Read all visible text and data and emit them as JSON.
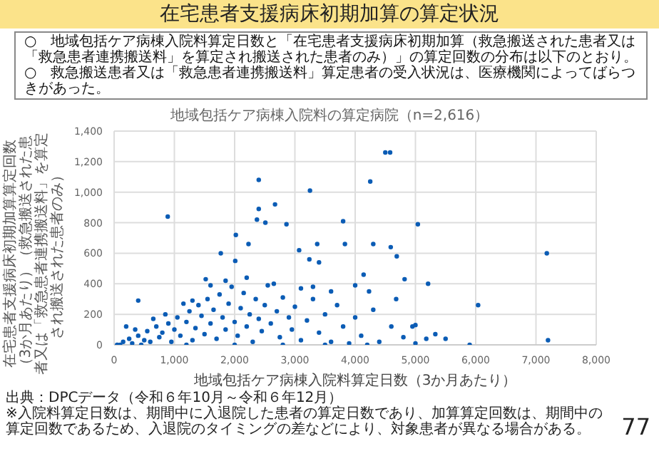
{
  "chart_data": {
    "type": "scatter",
    "title": "在宅患者支援病床初期加算の算定状況",
    "subtitle": "地域包括ケア病棟入院料の算定病院（n=2,616）",
    "xlabel": "地域包括ケア病棟入院料算定日数（3か月あたり）",
    "ylabel": "在宅患者支援病床初期加算算定回数（3か月あたり）（救急搬送された患者又は「救急患者連携搬送料」を算定され搬送された患者のみ）",
    "annotations": [
      "○　地域包括ケア病棟入院料算定日数と「在宅患者支援病床初期加算（救急搬送された患者又は「救急患者連携搬送料」を算定され搬送された患者のみ）」の算定回数の分布は以下のとおり。",
      "○　救急搬送患者又は「救急患者連携搬送料」算定患者の受入状況は、医療機関によってばらつきがあった。",
      "出典：DPCデータ（令和６年10月～令和６年12月）",
      "※入院料算定日数は、期間中に入退院した患者の算定日数であり、加算算定回数は、期間中の算定回数であるため、入退院のタイミングの差などにより、対象患者が異なる場合がある。",
      "77"
    ],
    "series": [
      {
        "color": "#0b5cb5",
        "x": [
          50,
          150,
          250,
          300,
          400,
          500,
          550,
          600,
          700,
          750,
          800,
          900,
          950,
          1000,
          1050,
          1100,
          1200,
          1250,
          1300,
          1350,
          1400,
          1450,
          1500,
          1550,
          1600,
          1650,
          1700,
          1750,
          1800,
          1850,
          1900,
          1950,
          2000,
          2050,
          2100,
          2150,
          2200,
          2250,
          2300,
          2350,
          2400,
          2450,
          2500,
          2550,
          2600,
          2700,
          2750,
          2800,
          2900,
          2950,
          3000,
          3100,
          3200,
          3300,
          3400,
          3500,
          3600,
          3700,
          3800,
          3900,
          4000,
          4100,
          4300,
          4400,
          4600,
          4800,
          5000,
          5500,
          5900,
          200,
          350,
          650,
          850,
          1150,
          1300,
          1600,
          1850,
          2200,
          2650,
          3100,
          3300,
          3600,
          4000,
          100,
          450,
          1200,
          2000,
          2800,
          3500,
          4200,
          4500,
          4580,
          2400,
          4250,
          3250,
          2400,
          2670,
          2370,
          2510,
          2860,
          3800,
          5040,
          7180,
          7200,
          6040,
          5210,
          4820,
          4690,
          4590,
          4300,
          3830,
          3370,
          3070,
          2020,
          2230,
          3240,
          3400,
          4140,
          4230,
          4680,
          5180,
          5330,
          5000,
          4950,
          890,
          1770,
          400,
          2010,
          1520
        ],
        "values": [
          0,
          20,
          40,
          10,
          60,
          30,
          90,
          20,
          120,
          50,
          80,
          140,
          20,
          100,
          180,
          60,
          150,
          220,
          30,
          110,
          260,
          190,
          70,
          300,
          140,
          230,
          40,
          330,
          180,
          100,
          270,
          380,
          150,
          60,
          240,
          340,
          120,
          200,
          20,
          300,
          170,
          90,
          260,
          390,
          140,
          220,
          50,
          310,
          180,
          100,
          250,
          30,
          160,
          300,
          80,
          200,
          20,
          260,
          120,
          10,
          180,
          60,
          230,
          20,
          120,
          50,
          10,
          40,
          0,
          120,
          100,
          170,
          200,
          270,
          290,
          390,
          420,
          440,
          400,
          370,
          380,
          350,
          390,
          0,
          0,
          0,
          0,
          0,
          0,
          0,
          1260,
          1260,
          1080,
          1070,
          1010,
          890,
          920,
          820,
          800,
          790,
          810,
          790,
          600,
          30,
          260,
          400,
          430,
          580,
          640,
          660,
          660,
          660,
          620,
          720,
          660,
          560,
          540,
          460,
          350,
          300,
          40,
          70,
          130,
          120,
          840,
          600,
          290,
          550,
          430
        ]
      }
    ],
    "xlim": [
      0,
      8000
    ],
    "xticks": [
      0,
      {
        "value": 1000,
        "label": "1,000"
      },
      {
        "value": 2000,
        "label": "2,000"
      },
      {
        "value": 3000,
        "label": "3,000"
      },
      {
        "value": 4000,
        "label": "4,000"
      },
      {
        "value": 5000,
        "label": "5,000"
      },
      {
        "value": 6000,
        "label": "6,000"
      },
      {
        "value": 7000,
        "label": "7,000"
      },
      {
        "value": 8000,
        "label": "8,000"
      }
    ],
    "ylim": [
      0,
      1400
    ],
    "yticks": [
      0,
      200,
      400,
      600,
      800,
      {
        "value": 1000,
        "label": "1,000"
      },
      {
        "value": 1200,
        "label": "1,200"
      },
      {
        "value": 1400,
        "label": "1,400"
      }
    ],
    "grid": true,
    "marker": "circle"
  }
}
